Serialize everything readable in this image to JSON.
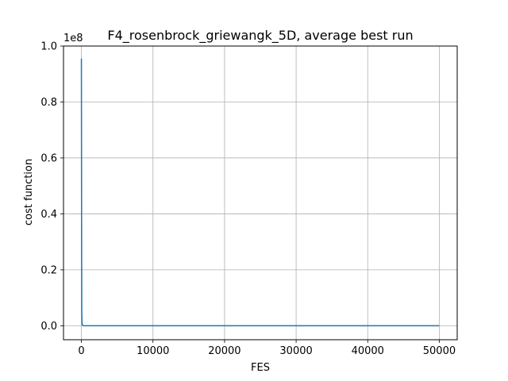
{
  "chart_data": {
    "type": "line",
    "title": "F4_rosenbrock_griewangk_5D, average best run",
    "xlabel": "FES",
    "ylabel": "cost function",
    "y_offset_text": "1e8",
    "xlim": [
      -2500,
      52500
    ],
    "ylim": [
      -0.05,
      1.0
    ],
    "x_ticks": [
      0,
      10000,
      20000,
      30000,
      40000,
      50000
    ],
    "x_tick_labels": [
      "0",
      "10000",
      "20000",
      "30000",
      "40000",
      "50000"
    ],
    "y_ticks": [
      0.0,
      0.2,
      0.4,
      0.6,
      0.8,
      1.0
    ],
    "y_tick_labels": [
      "0.0",
      "0.2",
      "0.4",
      "0.6",
      "0.8",
      "1.0"
    ],
    "grid": true,
    "series": [
      {
        "color": "#1f77b4",
        "x": [
          0,
          25,
          50,
          100,
          200,
          500,
          1000,
          5000,
          10000,
          20000,
          30000,
          40000,
          50000
        ],
        "y": [
          0.955,
          0.4,
          0.05,
          0.005,
          0.0005,
          0.0001,
          2e-05,
          1e-05,
          1e-05,
          1e-05,
          1e-05,
          1e-05,
          1e-05
        ]
      }
    ]
  }
}
